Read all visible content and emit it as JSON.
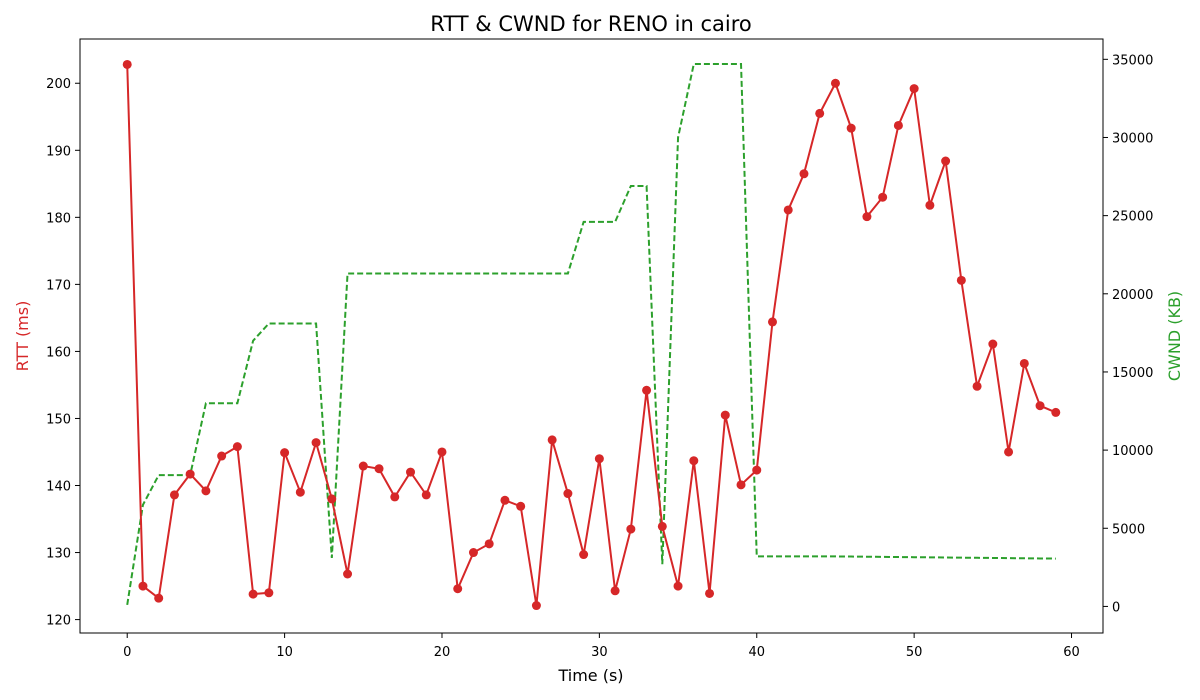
{
  "chart_data": {
    "type": "line",
    "title": "RTT & CWND for RENO in cairo",
    "xlabel": "Time (s)",
    "ylabel_left": "RTT (ms)",
    "ylabel_right": "CWND (KB)",
    "xlim": [
      -3,
      62
    ],
    "ylim_left": [
      118,
      206.6
    ],
    "ylim_right": [
      -1700,
      36300
    ],
    "x_ticks": [
      0,
      10,
      20,
      30,
      40,
      50,
      60
    ],
    "y_ticks_left": [
      120,
      130,
      140,
      150,
      160,
      170,
      180,
      190,
      200
    ],
    "y_ticks_right": [
      0,
      5000,
      10000,
      15000,
      20000,
      25000,
      30000,
      35000
    ],
    "grid": false,
    "colors": {
      "rtt": "#d62728",
      "cwnd": "#2ca02c"
    },
    "series": [
      {
        "axis": "left",
        "style": "solid-with-markers",
        "x": [
          0,
          1,
          2,
          3,
          4,
          5,
          6,
          7,
          8,
          9,
          10,
          11,
          12,
          13,
          14,
          15,
          16,
          17,
          18,
          19,
          20,
          21,
          22,
          23,
          24,
          25,
          26,
          27,
          28,
          29,
          30,
          31,
          32,
          33,
          34,
          35,
          36,
          37,
          38,
          39,
          40,
          41,
          42,
          43,
          44,
          45,
          46,
          47,
          48,
          49,
          50,
          51,
          52,
          53,
          54,
          55,
          56,
          57,
          58,
          59
        ],
        "values": [
          202.8,
          125,
          123.2,
          138.6,
          141.7,
          139.2,
          144.4,
          145.8,
          123.8,
          124,
          144.9,
          139,
          146.4,
          138,
          126.8,
          142.9,
          142.5,
          138.3,
          142,
          138.6,
          145,
          124.6,
          130,
          131.3,
          137.8,
          136.9,
          122.1,
          146.8,
          138.8,
          129.7,
          144,
          124.3,
          133.5,
          154.2,
          133.9,
          125,
          143.7,
          123.9,
          150.5,
          140.1,
          142.3,
          164.4,
          181.1,
          186.5,
          195.5,
          200,
          193.3,
          180.1,
          183,
          193.7,
          199.2,
          181.8,
          188.4,
          170.6,
          154.8,
          161.1,
          145,
          158.2,
          151.9,
          150.9
        ]
      },
      {
        "axis": "right",
        "style": "dashed",
        "x": [
          0,
          1,
          2,
          3,
          4,
          5,
          6,
          7,
          8,
          9,
          10,
          11,
          12,
          13,
          14,
          15,
          16,
          17,
          18,
          19,
          20,
          21,
          22,
          23,
          24,
          25,
          26,
          27,
          28,
          29,
          30,
          31,
          32,
          33,
          34,
          35,
          36,
          37,
          38,
          39,
          40,
          41,
          42,
          43,
          44,
          45,
          46,
          47,
          48,
          49,
          50,
          51,
          52,
          53,
          54,
          55,
          56,
          57,
          58,
          59
        ],
        "values": [
          100,
          6500,
          8400,
          8400,
          8400,
          13000,
          13000,
          13000,
          17000,
          18100,
          18100,
          18100,
          18100,
          3100,
          21300,
          21300,
          21300,
          21300,
          21300,
          21300,
          21300,
          21300,
          21300,
          21300,
          21300,
          21300,
          21300,
          21300,
          21300,
          24600,
          24600,
          24600,
          26900,
          26900,
          2700,
          30000,
          34700,
          34700,
          34700,
          34700,
          3200,
          3200,
          3200,
          3200,
          3200,
          3200,
          3190,
          3180,
          3170,
          3160,
          3150,
          3140,
          3130,
          3120,
          3110,
          3100,
          3090,
          3080,
          3070,
          3060
        ]
      }
    ]
  }
}
